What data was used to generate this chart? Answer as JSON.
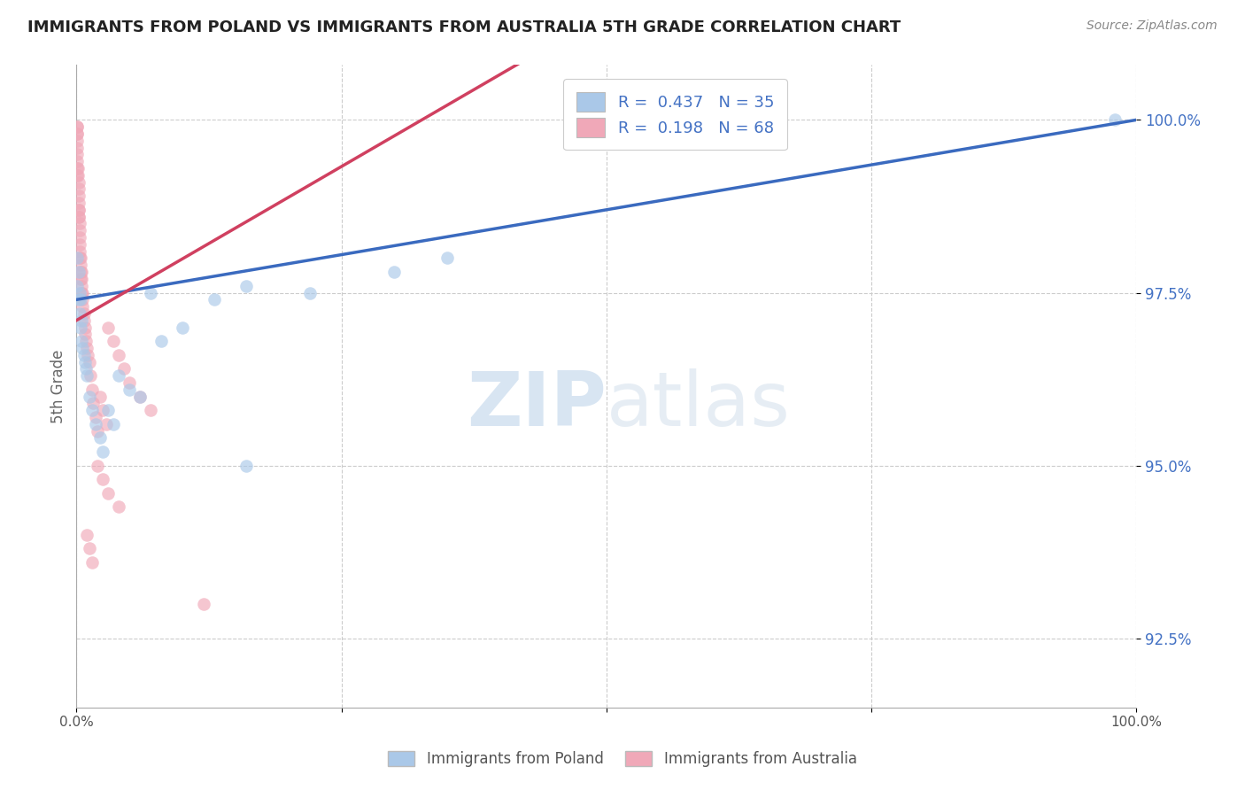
{
  "title": "IMMIGRANTS FROM POLAND VS IMMIGRANTS FROM AUSTRALIA 5TH GRADE CORRELATION CHART",
  "source": "Source: ZipAtlas.com",
  "xlabel_label": "Immigrants from Poland",
  "xlabel_label2": "Immigrants from Australia",
  "ylabel": "5th Grade",
  "xlim": [
    0.0,
    1.0
  ],
  "ylim": [
    0.915,
    1.008
  ],
  "yticks": [
    0.925,
    0.95,
    0.975,
    1.0
  ],
  "ytick_labels": [
    "92.5%",
    "95.0%",
    "97.5%",
    "100.0%"
  ],
  "legend_r_poland": "0.437",
  "legend_n_poland": "35",
  "legend_r_australia": "0.198",
  "legend_n_australia": "68",
  "poland_color": "#aac8e8",
  "australia_color": "#f0a8b8",
  "poland_line_color": "#3a6abf",
  "australia_line_color": "#d04060",
  "watermark_zip": "ZIP",
  "watermark_atlas": "atlas",
  "poland_x": [
    0.001,
    0.001,
    0.002,
    0.002,
    0.003,
    0.003,
    0.004,
    0.004,
    0.005,
    0.005,
    0.006,
    0.007,
    0.008,
    0.009,
    0.01,
    0.012,
    0.015,
    0.018,
    0.022,
    0.025,
    0.03,
    0.035,
    0.04,
    0.05,
    0.06,
    0.07,
    0.08,
    0.1,
    0.13,
    0.16,
    0.22,
    0.3,
    0.35,
    0.16,
    0.98
  ],
  "poland_y": [
    0.976,
    0.98,
    0.974,
    0.978,
    0.972,
    0.975,
    0.97,
    0.974,
    0.968,
    0.971,
    0.967,
    0.966,
    0.965,
    0.964,
    0.963,
    0.96,
    0.958,
    0.956,
    0.954,
    0.952,
    0.958,
    0.956,
    0.963,
    0.961,
    0.96,
    0.975,
    0.968,
    0.97,
    0.974,
    0.976,
    0.975,
    0.978,
    0.98,
    0.95,
    1.0
  ],
  "australia_x": [
    0.0005,
    0.0005,
    0.001,
    0.001,
    0.001,
    0.001,
    0.001,
    0.001,
    0.001,
    0.001,
    0.0015,
    0.0015,
    0.002,
    0.002,
    0.002,
    0.002,
    0.002,
    0.002,
    0.0025,
    0.0025,
    0.003,
    0.003,
    0.003,
    0.003,
    0.003,
    0.003,
    0.004,
    0.004,
    0.004,
    0.004,
    0.005,
    0.005,
    0.005,
    0.005,
    0.006,
    0.006,
    0.006,
    0.007,
    0.007,
    0.008,
    0.008,
    0.009,
    0.01,
    0.011,
    0.012,
    0.013,
    0.015,
    0.016,
    0.018,
    0.02,
    0.022,
    0.025,
    0.028,
    0.03,
    0.035,
    0.04,
    0.045,
    0.05,
    0.06,
    0.07,
    0.01,
    0.012,
    0.015,
    0.02,
    0.025,
    0.03,
    0.04,
    0.12
  ],
  "australia_y": [
    0.999,
    0.998,
    0.999,
    0.998,
    0.997,
    0.996,
    0.995,
    0.994,
    0.993,
    0.992,
    0.993,
    0.992,
    0.991,
    0.99,
    0.989,
    0.988,
    0.987,
    0.986,
    0.987,
    0.986,
    0.985,
    0.984,
    0.983,
    0.982,
    0.981,
    0.98,
    0.98,
    0.979,
    0.978,
    0.977,
    0.978,
    0.977,
    0.976,
    0.975,
    0.975,
    0.974,
    0.973,
    0.972,
    0.971,
    0.97,
    0.969,
    0.968,
    0.967,
    0.966,
    0.965,
    0.963,
    0.961,
    0.959,
    0.957,
    0.955,
    0.96,
    0.958,
    0.956,
    0.97,
    0.968,
    0.966,
    0.964,
    0.962,
    0.96,
    0.958,
    0.94,
    0.938,
    0.936,
    0.95,
    0.948,
    0.946,
    0.944,
    0.93
  ]
}
